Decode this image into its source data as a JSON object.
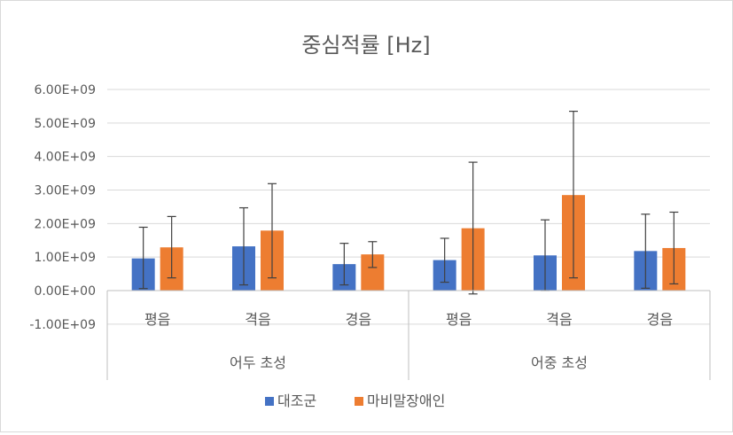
{
  "chart_data": {
    "type": "bar",
    "title": "중심적률 [Hz]",
    "group_labels": [
      "어두 초성",
      "어중 초성"
    ],
    "categories": [
      "평음",
      "격음",
      "경음",
      "평음",
      "격음",
      "경음"
    ],
    "ylim": [
      -1000000000,
      6000000000
    ],
    "yticks": [
      -1000000000,
      0,
      1000000000,
      2000000000,
      3000000000,
      4000000000,
      5000000000,
      6000000000
    ],
    "ytick_labels": [
      "-1.00E+09",
      "0.00E+00",
      "1.00E+09",
      "2.00E+09",
      "3.00E+09",
      "4.00E+09",
      "5.00E+09",
      "6.00E+09"
    ],
    "grid": true,
    "legend_position": "bottom",
    "series": [
      {
        "name": "대조군",
        "color": "#4472C4",
        "values": [
          960000000,
          1320000000,
          790000000,
          910000000,
          1050000000,
          1180000000
        ],
        "err_low": [
          60000000,
          170000000,
          170000000,
          250000000,
          0,
          70000000
        ],
        "err_high": [
          1890000000,
          2470000000,
          1410000000,
          1560000000,
          2110000000,
          2280000000
        ]
      },
      {
        "name": "마비말장애인",
        "color": "#ED7D31",
        "values": [
          1290000000,
          1790000000,
          1080000000,
          1860000000,
          2850000000,
          1270000000
        ],
        "err_low": [
          380000000,
          380000000,
          690000000,
          -100000000,
          380000000,
          200000000
        ],
        "err_high": [
          2210000000,
          3190000000,
          1460000000,
          3830000000,
          5350000000,
          2340000000
        ]
      }
    ]
  }
}
